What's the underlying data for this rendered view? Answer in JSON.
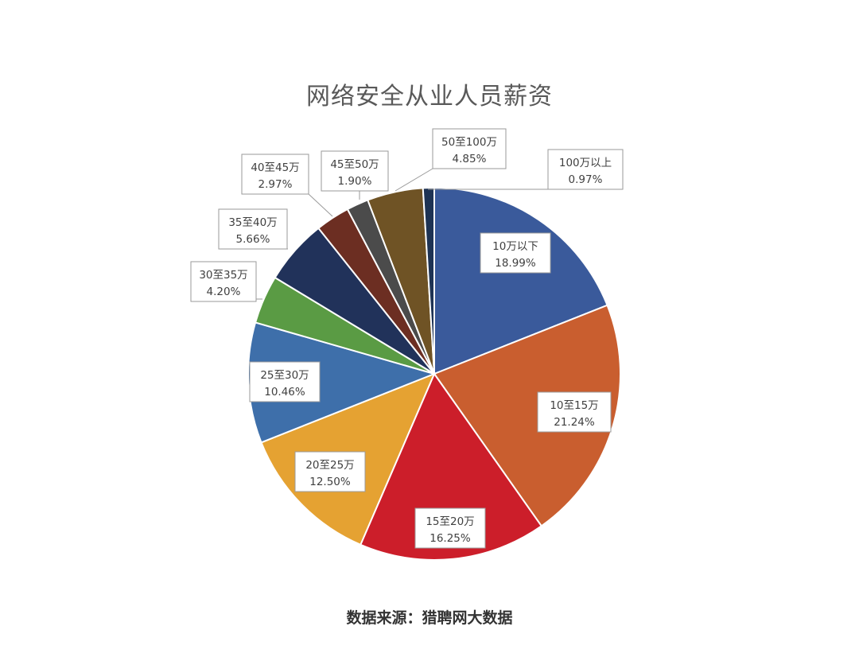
{
  "chart_data": {
    "type": "pie",
    "title": "网络安全从业人员薪资",
    "slices": [
      {
        "label": "10万以下",
        "value": 18.99,
        "display": "18.99%",
        "color": "#3A5A9B"
      },
      {
        "label": "10至15万",
        "value": 21.24,
        "display": "21.24%",
        "color": "#C95E2F"
      },
      {
        "label": "15至20万",
        "value": 16.25,
        "display": "16.25%",
        "color": "#CC1E2A"
      },
      {
        "label": "20至25万",
        "value": 12.5,
        "display": "12.50%",
        "color": "#E5A232"
      },
      {
        "label": "25至30万",
        "value": 10.46,
        "display": "10.46%",
        "color": "#3E6FAA"
      },
      {
        "label": "30至35万",
        "value": 4.2,
        "display": "4.20%",
        "color": "#5A9B44"
      },
      {
        "label": "35至40万",
        "value": 5.66,
        "display": "5.66%",
        "color": "#21325A"
      },
      {
        "label": "40至45万",
        "value": 2.97,
        "display": "2.97%",
        "color": "#6C2E22"
      },
      {
        "label": "45至50万",
        "value": 1.9,
        "display": "1.90%",
        "color": "#4B4B4B"
      },
      {
        "label": "50至100万",
        "value": 4.85,
        "display": "4.85%",
        "color": "#6F5325"
      },
      {
        "label": "100万以上",
        "value": 0.97,
        "display": "0.97%",
        "color": "#1E3354"
      }
    ]
  },
  "footer": {
    "source": "数据来源：猎聘网大数据"
  }
}
